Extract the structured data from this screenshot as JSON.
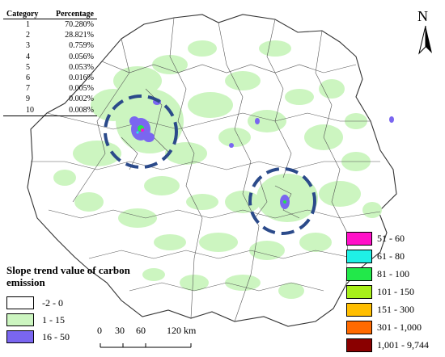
{
  "category_table": {
    "headers": [
      "Category",
      "Percentage"
    ],
    "rows": [
      {
        "category": "1",
        "percentage": "70.280%"
      },
      {
        "category": "2",
        "percentage": "28.821%"
      },
      {
        "category": "3",
        "percentage": "0.759%"
      },
      {
        "category": "4",
        "percentage": "0.056%"
      },
      {
        "category": "5",
        "percentage": "0.053%"
      },
      {
        "category": "6",
        "percentage": "0.016%"
      },
      {
        "category": "7",
        "percentage": "0.005%"
      },
      {
        "category": "9",
        "percentage": "0.002%"
      },
      {
        "category": "10",
        "percentage": "0.008%"
      }
    ]
  },
  "legend_left": {
    "title": "Slope trend value of carbon emission",
    "items": [
      {
        "label": "-2 - 0",
        "color": "#ffffff"
      },
      {
        "label": "1 - 15",
        "color": "#ccf5c0"
      },
      {
        "label": "16 - 50",
        "color": "#7a66f0"
      }
    ]
  },
  "legend_right": {
    "items": [
      {
        "label": "51 - 60",
        "color": "#ff10c8"
      },
      {
        "label": "61 - 80",
        "color": "#1ff0e6"
      },
      {
        "label": "81 - 100",
        "color": "#22e84a"
      },
      {
        "label": "101 - 150",
        "color": "#a8f01a"
      },
      {
        "label": "151 - 300",
        "color": "#ffbe00"
      },
      {
        "label": "301 - 1,000",
        "color": "#ff6a00"
      },
      {
        "label": "1,001 - 9,744",
        "color": "#8a0000"
      }
    ]
  },
  "scale_bar": {
    "labels": [
      "0",
      "30",
      "60",
      "120 km"
    ]
  },
  "north_arrow": {
    "label": "N",
    "icon": "north-arrow-icon"
  },
  "map": {
    "highlight_circle_color": "#2b4a8a",
    "boundary_color": "#555555"
  }
}
